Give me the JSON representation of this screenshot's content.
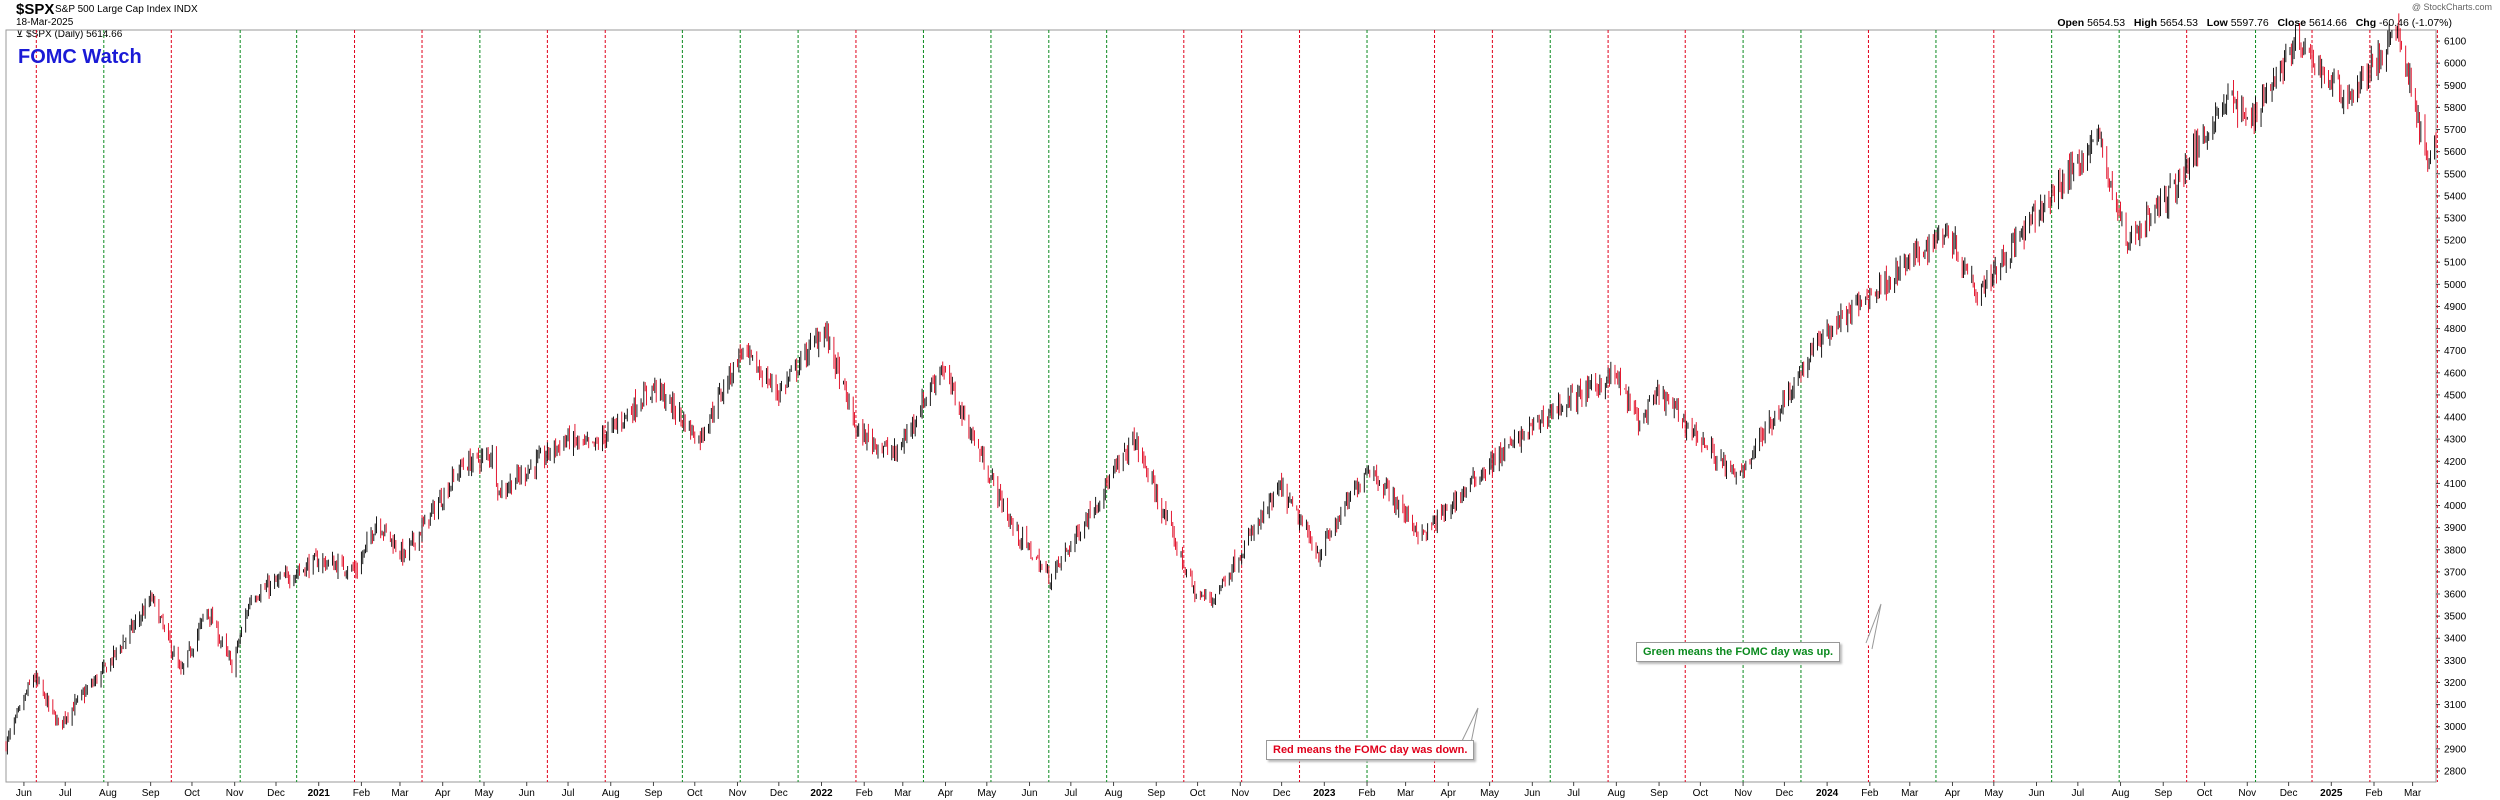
{
  "header": {
    "ticker": "$SPX",
    "name": "S&P 500 Large Cap Index INDX",
    "date": "18-Mar-2025",
    "legend": "$SPX (Daily) 5614.66",
    "credit": "@ StockCharts.com",
    "open_label": "Open",
    "open": "5654.53",
    "high_label": "High",
    "high": "5654.53",
    "low_label": "Low",
    "low": "5597.76",
    "close_label": "Close",
    "close": "5614.66",
    "chg_label": "Chg",
    "chg": "-60.46 (-1.07%)"
  },
  "chart_title_overlay": "FOMC Watch",
  "annotations": {
    "red": "Red means the FOMC day was down.",
    "green": "Green means the FOMC day was up."
  },
  "colors": {
    "up_candle": "#000000",
    "down_candle": "#e0001b",
    "fomc_up_line": "#0a8a1e",
    "fomc_down_line": "#e0001b",
    "title_color": "#1a1ad6"
  },
  "chart_data": {
    "type": "candlestick",
    "x_range": [
      "2020-05-19",
      "2025-03-18"
    ],
    "ylim": [
      2750,
      6150
    ],
    "y_axis_position": "right",
    "y_ticks": [
      2800,
      2900,
      3000,
      3100,
      3200,
      3300,
      3400,
      3500,
      3600,
      3700,
      3800,
      3900,
      4000,
      4100,
      4200,
      4300,
      4400,
      4500,
      4600,
      4700,
      4800,
      4900,
      5000,
      5100,
      5200,
      5300,
      5400,
      5500,
      5600,
      5700,
      5800,
      5900,
      6000,
      6100
    ],
    "x_ticks": [
      {
        "date": "2020-06-01",
        "label": "Jun"
      },
      {
        "date": "2020-07-01",
        "label": "Jul"
      },
      {
        "date": "2020-08-01",
        "label": "Aug"
      },
      {
        "date": "2020-09-01",
        "label": "Sep"
      },
      {
        "date": "2020-10-01",
        "label": "Oct"
      },
      {
        "date": "2020-11-01",
        "label": "Nov"
      },
      {
        "date": "2020-12-01",
        "label": "Dec"
      },
      {
        "date": "2021-01-01",
        "label": "2021",
        "bold": true
      },
      {
        "date": "2021-02-01",
        "label": "Feb"
      },
      {
        "date": "2021-03-01",
        "label": "Mar"
      },
      {
        "date": "2021-04-01",
        "label": "Apr"
      },
      {
        "date": "2021-05-01",
        "label": "May"
      },
      {
        "date": "2021-06-01",
        "label": "Jun"
      },
      {
        "date": "2021-07-01",
        "label": "Jul"
      },
      {
        "date": "2021-08-01",
        "label": "Aug"
      },
      {
        "date": "2021-09-01",
        "label": "Sep"
      },
      {
        "date": "2021-10-01",
        "label": "Oct"
      },
      {
        "date": "2021-11-01",
        "label": "Nov"
      },
      {
        "date": "2021-12-01",
        "label": "Dec"
      },
      {
        "date": "2022-01-01",
        "label": "2022",
        "bold": true
      },
      {
        "date": "2022-02-01",
        "label": "Feb"
      },
      {
        "date": "2022-03-01",
        "label": "Mar"
      },
      {
        "date": "2022-04-01",
        "label": "Apr"
      },
      {
        "date": "2022-05-01",
        "label": "May"
      },
      {
        "date": "2022-06-01",
        "label": "Jun"
      },
      {
        "date": "2022-07-01",
        "label": "Jul"
      },
      {
        "date": "2022-08-01",
        "label": "Aug"
      },
      {
        "date": "2022-09-01",
        "label": "Sep"
      },
      {
        "date": "2022-10-01",
        "label": "Oct"
      },
      {
        "date": "2022-11-01",
        "label": "Nov"
      },
      {
        "date": "2022-12-01",
        "label": "Dec"
      },
      {
        "date": "2023-01-01",
        "label": "2023",
        "bold": true
      },
      {
        "date": "2023-02-01",
        "label": "Feb"
      },
      {
        "date": "2023-03-01",
        "label": "Mar"
      },
      {
        "date": "2023-04-01",
        "label": "Apr"
      },
      {
        "date": "2023-05-01",
        "label": "May"
      },
      {
        "date": "2023-06-01",
        "label": "Jun"
      },
      {
        "date": "2023-07-01",
        "label": "Jul"
      },
      {
        "date": "2023-08-01",
        "label": "Aug"
      },
      {
        "date": "2023-09-01",
        "label": "Sep"
      },
      {
        "date": "2023-10-01",
        "label": "Oct"
      },
      {
        "date": "2023-11-01",
        "label": "Nov"
      },
      {
        "date": "2023-12-01",
        "label": "Dec"
      },
      {
        "date": "2024-01-01",
        "label": "2024",
        "bold": true
      },
      {
        "date": "2024-02-01",
        "label": "Feb"
      },
      {
        "date": "2024-03-01",
        "label": "Mar"
      },
      {
        "date": "2024-04-01",
        "label": "Apr"
      },
      {
        "date": "2024-05-01",
        "label": "May"
      },
      {
        "date": "2024-06-01",
        "label": "Jun"
      },
      {
        "date": "2024-07-01",
        "label": "Jul"
      },
      {
        "date": "2024-08-01",
        "label": "Aug"
      },
      {
        "date": "2024-09-01",
        "label": "Sep"
      },
      {
        "date": "2024-10-01",
        "label": "Oct"
      },
      {
        "date": "2024-11-01",
        "label": "Nov"
      },
      {
        "date": "2024-12-01",
        "label": "Dec"
      },
      {
        "date": "2025-01-01",
        "label": "2025",
        "bold": true
      },
      {
        "date": "2025-02-01",
        "label": "Feb"
      },
      {
        "date": "2025-03-01",
        "label": "Mar"
      }
    ],
    "fomc_days": [
      {
        "date": "2020-06-10",
        "result": "down"
      },
      {
        "date": "2020-07-29",
        "result": "up"
      },
      {
        "date": "2020-09-16",
        "result": "down"
      },
      {
        "date": "2020-11-05",
        "result": "up"
      },
      {
        "date": "2020-12-16",
        "result": "up"
      },
      {
        "date": "2021-01-27",
        "result": "down"
      },
      {
        "date": "2021-03-17",
        "result": "down"
      },
      {
        "date": "2021-04-28",
        "result": "up"
      },
      {
        "date": "2021-06-16",
        "result": "down"
      },
      {
        "date": "2021-07-28",
        "result": "down"
      },
      {
        "date": "2021-09-22",
        "result": "up"
      },
      {
        "date": "2021-11-03",
        "result": "up"
      },
      {
        "date": "2021-12-15",
        "result": "up"
      },
      {
        "date": "2022-01-26",
        "result": "down"
      },
      {
        "date": "2022-03-16",
        "result": "up"
      },
      {
        "date": "2022-05-04",
        "result": "up"
      },
      {
        "date": "2022-06-15",
        "result": "up"
      },
      {
        "date": "2022-07-27",
        "result": "up"
      },
      {
        "date": "2022-09-21",
        "result": "down"
      },
      {
        "date": "2022-11-02",
        "result": "down"
      },
      {
        "date": "2022-12-14",
        "result": "down"
      },
      {
        "date": "2023-02-01",
        "result": "up"
      },
      {
        "date": "2023-03-22",
        "result": "down"
      },
      {
        "date": "2023-05-03",
        "result": "down"
      },
      {
        "date": "2023-06-14",
        "result": "up"
      },
      {
        "date": "2023-07-26",
        "result": "down"
      },
      {
        "date": "2023-09-20",
        "result": "down"
      },
      {
        "date": "2023-11-01",
        "result": "up"
      },
      {
        "date": "2023-12-13",
        "result": "up"
      },
      {
        "date": "2024-01-31",
        "result": "down"
      },
      {
        "date": "2024-03-20",
        "result": "up"
      },
      {
        "date": "2024-05-01",
        "result": "down"
      },
      {
        "date": "2024-06-12",
        "result": "up"
      },
      {
        "date": "2024-07-31",
        "result": "up"
      },
      {
        "date": "2024-09-18",
        "result": "down"
      },
      {
        "date": "2024-11-07",
        "result": "up"
      },
      {
        "date": "2024-12-18",
        "result": "down"
      },
      {
        "date": "2025-01-29",
        "result": "down"
      },
      {
        "date": "2025-03-19",
        "result": "down"
      }
    ],
    "price_path": [
      {
        "date": "2020-05-19",
        "close": 2920
      },
      {
        "date": "2020-06-08",
        "close": 3230
      },
      {
        "date": "2020-06-26",
        "close": 3010
      },
      {
        "date": "2020-07-31",
        "close": 3270
      },
      {
        "date": "2020-09-02",
        "close": 3580
      },
      {
        "date": "2020-09-23",
        "close": 3240
      },
      {
        "date": "2020-10-12",
        "close": 3530
      },
      {
        "date": "2020-10-30",
        "close": 3270
      },
      {
        "date": "2020-11-13",
        "close": 3590
      },
      {
        "date": "2020-12-31",
        "close": 3750
      },
      {
        "date": "2021-01-29",
        "close": 3710
      },
      {
        "date": "2021-02-12",
        "close": 3930
      },
      {
        "date": "2021-03-04",
        "close": 3770
      },
      {
        "date": "2021-04-15",
        "close": 4180
      },
      {
        "date": "2021-05-07",
        "close": 4230
      },
      {
        "date": "2021-05-12",
        "close": 4060
      },
      {
        "date": "2021-06-30",
        "close": 4300
      },
      {
        "date": "2021-07-19",
        "close": 4260
      },
      {
        "date": "2021-09-02",
        "close": 4540
      },
      {
        "date": "2021-10-04",
        "close": 4300
      },
      {
        "date": "2021-11-04",
        "close": 4700
      },
      {
        "date": "2021-12-01",
        "close": 4510
      },
      {
        "date": "2022-01-03",
        "close": 4800
      },
      {
        "date": "2022-01-27",
        "close": 4330
      },
      {
        "date": "2022-02-24",
        "close": 4230
      },
      {
        "date": "2022-03-29",
        "close": 4630
      },
      {
        "date": "2022-05-20",
        "close": 3900
      },
      {
        "date": "2022-06-16",
        "close": 3670
      },
      {
        "date": "2022-08-16",
        "close": 4300
      },
      {
        "date": "2022-09-30",
        "close": 3590
      },
      {
        "date": "2022-10-12",
        "close": 3580
      },
      {
        "date": "2022-11-30",
        "close": 4080
      },
      {
        "date": "2022-12-28",
        "close": 3780
      },
      {
        "date": "2023-02-02",
        "close": 4180
      },
      {
        "date": "2023-03-13",
        "close": 3860
      },
      {
        "date": "2023-04-28",
        "close": 4170
      },
      {
        "date": "2023-06-15",
        "close": 4430
      },
      {
        "date": "2023-07-31",
        "close": 4590
      },
      {
        "date": "2023-08-18",
        "close": 4370
      },
      {
        "date": "2023-09-01",
        "close": 4510
      },
      {
        "date": "2023-10-27",
        "close": 4120
      },
      {
        "date": "2023-12-29",
        "close": 4770
      },
      {
        "date": "2024-03-28",
        "close": 5250
      },
      {
        "date": "2024-04-19",
        "close": 4970
      },
      {
        "date": "2024-07-16",
        "close": 5670
      },
      {
        "date": "2024-08-05",
        "close": 5190
      },
      {
        "date": "2024-09-06",
        "close": 5410
      },
      {
        "date": "2024-10-18",
        "close": 5860
      },
      {
        "date": "2024-11-01",
        "close": 5730
      },
      {
        "date": "2024-12-06",
        "close": 6090
      },
      {
        "date": "2025-01-13",
        "close": 5840
      },
      {
        "date": "2025-02-19",
        "close": 6140
      },
      {
        "date": "2025-03-13",
        "close": 5530
      },
      {
        "date": "2025-03-18",
        "close": 5614.66
      }
    ]
  }
}
